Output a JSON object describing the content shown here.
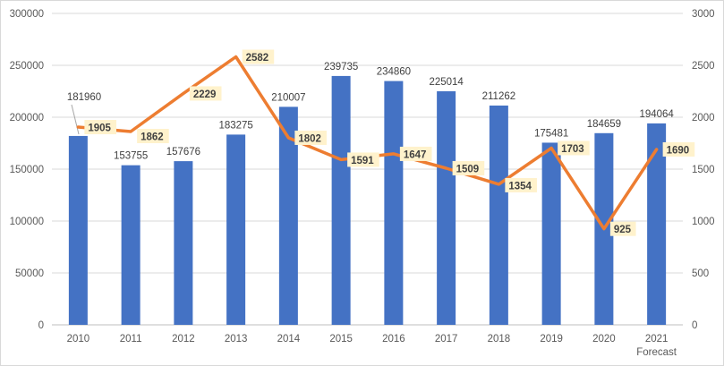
{
  "chart_data": {
    "type": "bar",
    "combo": true,
    "title": "",
    "legend": "none",
    "grid": true,
    "categories": [
      "2010",
      "2011",
      "2012",
      "2013",
      "2014",
      "2015",
      "2016",
      "2017",
      "2018",
      "2019",
      "2020",
      "2021 Forecast"
    ],
    "series": [
      {
        "name": "bar-series",
        "type": "bar",
        "axis": "left",
        "color": "#4472C4",
        "values": [
          181960,
          153755,
          157676,
          183275,
          210007,
          239735,
          234860,
          225014,
          211262,
          175481,
          184659,
          194064
        ],
        "data_labels": [
          "181960",
          "153755",
          "157676",
          "183275",
          "210007",
          "239735",
          "234860",
          "225014",
          "211262",
          "175481",
          "184659",
          "194064"
        ]
      },
      {
        "name": "line-series",
        "type": "line",
        "axis": "right",
        "color": "#ED7D31",
        "values": [
          1905,
          1862,
          2229,
          2582,
          1802,
          1591,
          1647,
          1509,
          1354,
          1703,
          925,
          1690
        ],
        "data_labels": [
          "1905",
          "1862",
          "2229",
          "2582",
          "1802",
          "1591",
          "1647",
          "1509",
          "1354",
          "1703",
          "925",
          "1690"
        ],
        "label_dy": [
          0,
          5,
          0,
          0,
          0,
          0,
          0,
          0,
          1,
          0,
          0,
          0
        ]
      }
    ],
    "left_axis": {
      "min": 0,
      "max": 300000,
      "step": 50000,
      "tick_labels": [
        "0",
        "50000",
        "100000",
        "150000",
        "200000",
        "250000",
        "300000"
      ]
    },
    "right_axis": {
      "min": 0,
      "max": 3000,
      "step": 500,
      "tick_labels": [
        "0",
        "500",
        "1000",
        "1500",
        "2000",
        "2500",
        "3000"
      ]
    },
    "styles": {
      "bar_color": "#4472C4",
      "line_color": "#ED7D31",
      "line_label_bg": "#FFF2CC",
      "line_label_text": "#404040",
      "bar_label_text": "#404040",
      "axis_text": "#595959",
      "gridline": "#D9D9D9",
      "axis_line": "#BFBFBF",
      "leader_line": "#A6A6A6"
    },
    "callout": {
      "series": 0,
      "index": 0
    }
  }
}
